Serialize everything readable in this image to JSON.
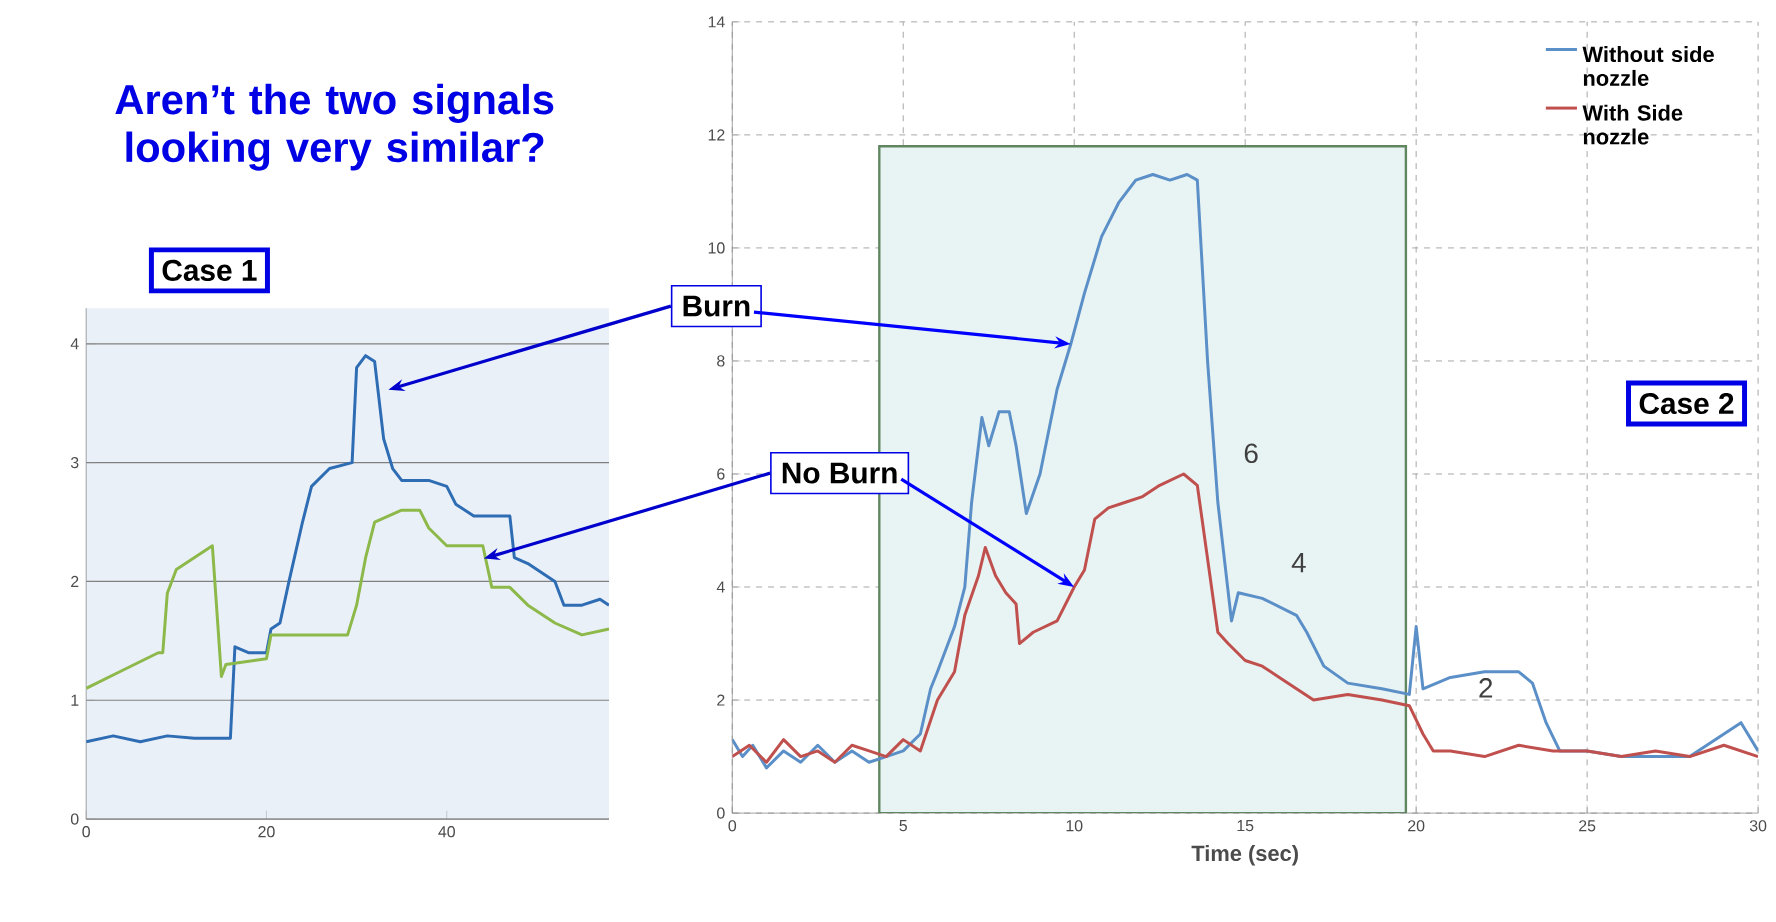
{
  "chart_data": [
    {
      "type": "line",
      "title": "Aren’t the two signals looking very similar?",
      "annotations": [
        "Case 1"
      ],
      "xlim": [
        0,
        58
      ],
      "xticks": [
        0,
        20,
        40
      ],
      "ylim": [
        0,
        4.3
      ],
      "yticks": [
        0,
        1,
        2,
        3,
        4
      ],
      "grid": "y",
      "series": [
        {
          "color": "#2e6db4",
          "x": [
            0,
            3,
            6,
            9,
            12,
            16,
            16.5,
            18,
            20,
            20.5,
            21.5,
            22.5,
            24,
            25,
            27,
            29.5,
            30,
            31,
            32,
            33,
            34,
            35,
            38,
            40,
            41,
            43,
            47,
            47.5,
            49,
            52,
            53,
            55,
            57,
            58
          ],
          "values": [
            0.65,
            0.7,
            0.65,
            0.7,
            0.68,
            0.68,
            1.45,
            1.4,
            1.4,
            1.6,
            1.65,
            2.0,
            2.5,
            2.8,
            2.95,
            3.0,
            3.8,
            3.9,
            3.85,
            3.2,
            2.95,
            2.85,
            2.85,
            2.8,
            2.65,
            2.55,
            2.55,
            2.2,
            2.15,
            2.0,
            1.8,
            1.8,
            1.85,
            1.8
          ]
        },
        {
          "color": "#8db84a",
          "x": [
            0,
            4,
            8,
            8.5,
            9,
            10,
            12,
            14,
            15,
            15.5,
            20,
            20.5,
            22,
            29,
            30,
            31,
            32,
            35,
            37,
            38,
            40,
            44,
            45,
            47,
            49,
            52,
            55,
            58
          ],
          "values": [
            1.1,
            1.25,
            1.4,
            1.4,
            1.9,
            2.1,
            2.2,
            2.3,
            1.2,
            1.3,
            1.35,
            1.55,
            1.55,
            1.55,
            1.8,
            2.2,
            2.5,
            2.6,
            2.6,
            2.45,
            2.3,
            2.3,
            1.95,
            1.95,
            1.8,
            1.65,
            1.55,
            1.6
          ]
        }
      ]
    },
    {
      "type": "line",
      "xlabel": "Time (sec)",
      "legend": "top right",
      "grid": true,
      "xlim": [
        0,
        30
      ],
      "xticks": [
        0,
        5,
        10,
        15,
        20,
        25,
        30
      ],
      "ylim": [
        0,
        14
      ],
      "yticks": [
        0,
        2,
        4,
        6,
        8,
        10,
        12,
        14
      ],
      "bands": [
        {
          "axis": "x",
          "from": 4.3,
          "to": 19.7,
          "color": "#e8f3f3"
        }
      ],
      "annotations": [
        "Case 2",
        {
          "text": "Burn",
          "x": 9.9,
          "y": 8.3
        },
        {
          "text": "No Burn",
          "x": 10,
          "y": 4.0
        },
        "6",
        "4",
        "2"
      ],
      "series": [
        {
          "name": "Without side nozzle",
          "color": "#5b8fc8",
          "x": [
            0,
            0.3,
            0.6,
            1,
            1.5,
            2,
            2.5,
            3,
            3.5,
            4,
            4.5,
            5,
            5.5,
            5.8,
            6,
            6.5,
            6.8,
            7.0,
            7.3,
            7.5,
            7.8,
            8.1,
            8.3,
            8.6,
            9,
            9.5,
            9.9,
            10.3,
            10.8,
            11.3,
            11.8,
            12.3,
            12.8,
            13.3,
            13.6,
            13.9,
            14.2,
            14.6,
            14.8,
            15.5,
            16.5,
            16.8,
            17.3,
            18,
            19,
            19.8,
            20,
            20.2,
            21,
            22,
            23,
            23.4,
            23.8,
            24.2,
            25,
            26,
            28,
            29.5,
            30
          ],
          "values": [
            1.3,
            1.0,
            1.2,
            0.8,
            1.1,
            0.9,
            1.2,
            0.9,
            1.1,
            0.9,
            1.0,
            1.1,
            1.4,
            2.2,
            2.5,
            3.3,
            4.0,
            5.5,
            7.0,
            6.5,
            7.1,
            7.1,
            6.5,
            5.3,
            6.0,
            7.5,
            8.3,
            9.2,
            10.2,
            10.8,
            11.2,
            11.3,
            11.2,
            11.3,
            11.2,
            8.0,
            5.5,
            3.4,
            3.9,
            3.8,
            3.5,
            3.2,
            2.6,
            2.3,
            2.2,
            2.1,
            3.3,
            2.2,
            2.4,
            2.5,
            2.5,
            2.3,
            1.6,
            1.1,
            1.1,
            1.0,
            1.0,
            1.6,
            1.1
          ]
        },
        {
          "name": "With Side nozzle",
          "color": "#c0504d",
          "x": [
            0,
            0.5,
            1,
            1.5,
            2,
            2.5,
            3,
            3.5,
            4,
            4.5,
            5,
            5.5,
            6,
            6.5,
            6.8,
            7.2,
            7.4,
            7.7,
            8,
            8.3,
            8.4,
            8.8,
            9.5,
            10,
            10.3,
            10.6,
            11,
            11.5,
            12,
            12.5,
            13.2,
            13.6,
            13.9,
            14.2,
            14.5,
            15,
            15.5,
            16,
            17,
            18,
            19,
            19.8,
            20.2,
            20.5,
            21,
            22,
            23,
            24,
            25,
            26,
            27,
            28,
            29,
            30
          ],
          "values": [
            1.0,
            1.2,
            0.9,
            1.3,
            1.0,
            1.1,
            0.9,
            1.2,
            1.1,
            1.0,
            1.3,
            1.1,
            2.0,
            2.5,
            3.5,
            4.2,
            4.7,
            4.2,
            3.9,
            3.7,
            3.0,
            3.2,
            3.4,
            4.0,
            4.3,
            5.2,
            5.4,
            5.5,
            5.6,
            5.8,
            6.0,
            5.8,
            4.5,
            3.2,
            3.0,
            2.7,
            2.6,
            2.4,
            2.0,
            2.1,
            2.0,
            1.9,
            1.4,
            1.1,
            1.1,
            1.0,
            1.2,
            1.1,
            1.1,
            1.0,
            1.1,
            1.0,
            1.2,
            1.0
          ]
        }
      ]
    }
  ]
}
